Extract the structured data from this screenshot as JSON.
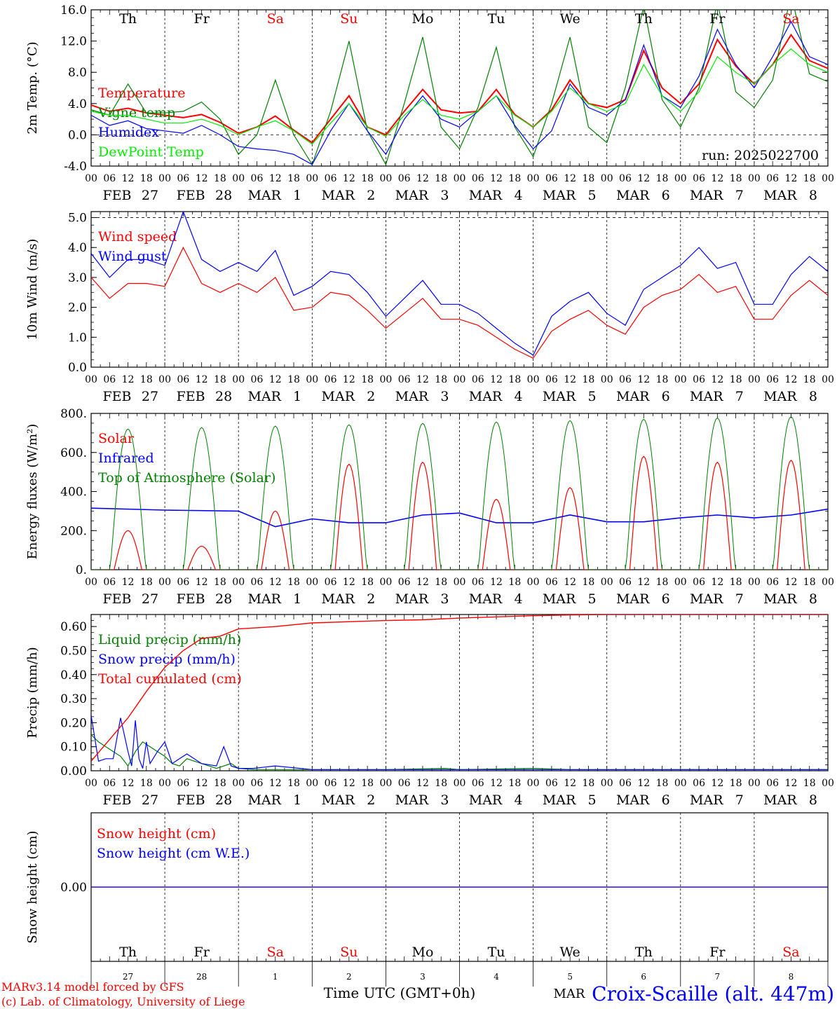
{
  "run_label": "run: 2025022700",
  "footer": {
    "model": "MARv3.14 model forced by GFS",
    "copyright": "(c) Lab. of Climatology, University of Liege",
    "xlabel": "Time UTC (GMT+0h)",
    "month": "MAR",
    "station": "Croix-Scaille (alt. 447m)"
  },
  "colors": {
    "red": "#ff0000",
    "green": "#008000",
    "blue": "#0000ff",
    "lightgreen": "#00ee00"
  },
  "weekday_labels": [
    {
      "text": "Th",
      "color": "#000000"
    },
    {
      "text": "Fr",
      "color": "#000000"
    },
    {
      "text": "Sa",
      "color": "#ff0000"
    },
    {
      "text": "Su",
      "color": "#ff0000"
    },
    {
      "text": "Mo",
      "color": "#000000"
    },
    {
      "text": "Tu",
      "color": "#000000"
    },
    {
      "text": "We",
      "color": "#000000"
    },
    {
      "text": "Th",
      "color": "#000000"
    },
    {
      "text": "Fr",
      "color": "#000000"
    },
    {
      "text": "Sa",
      "color": "#ff0000"
    }
  ],
  "day_numbers": [
    "27",
    "28",
    "1",
    "2",
    "3",
    "4",
    "5",
    "6",
    "7",
    "8"
  ],
  "hour_ticks": [
    "00",
    "06",
    "12",
    "18"
  ],
  "date_labels": [
    {
      "m": "FEB",
      "d": "27"
    },
    {
      "m": "FEB",
      "d": "28"
    },
    {
      "m": "MAR",
      "d": "1"
    },
    {
      "m": "MAR",
      "d": "2"
    },
    {
      "m": "MAR",
      "d": "3"
    },
    {
      "m": "MAR",
      "d": "4"
    },
    {
      "m": "MAR",
      "d": "5"
    },
    {
      "m": "MAR",
      "d": "6"
    },
    {
      "m": "MAR",
      "d": "7"
    },
    {
      "m": "MAR",
      "d": "8"
    }
  ],
  "chart_data": [
    {
      "type": "line",
      "ylabel": "2m Temp. (°C)",
      "ylim": [
        -4,
        16
      ],
      "yticks": [
        -4,
        0,
        4,
        8,
        12,
        16
      ],
      "ytick_labels": [
        "-4.0",
        "0.0",
        "4.0",
        "8.0",
        "12.0",
        "16.0"
      ],
      "hline": 0,
      "x_unit": "days since FEB 27 00 UTC",
      "series": [
        {
          "name": "Temperature",
          "color": "#ff0000",
          "width": 2,
          "x": [
            0,
            0.25,
            0.5,
            0.75,
            1,
            1.25,
            1.5,
            1.75,
            2,
            2.25,
            2.5,
            2.75,
            3,
            3.25,
            3.5,
            3.75,
            4,
            4.25,
            4.5,
            4.75,
            5,
            5.25,
            5.5,
            5.75,
            6,
            6.25,
            6.5,
            6.75,
            7,
            7.25,
            7.5,
            7.75,
            8,
            8.25,
            8.5,
            8.75,
            9,
            9.25,
            9.5,
            9.75,
            10
          ],
          "y": [
            3.8,
            3.0,
            3.4,
            2.8,
            2.5,
            2.2,
            2.6,
            1.6,
            0.2,
            1.0,
            2.4,
            0.6,
            -1.0,
            2.0,
            5.0,
            1.0,
            0.0,
            3.0,
            5.8,
            3.2,
            2.8,
            3.0,
            5.8,
            2.6,
            1.0,
            3.2,
            7.0,
            4.0,
            3.5,
            4.5,
            10.8,
            6.0,
            4.0,
            6.5,
            12.2,
            8.8,
            6.5,
            9.0,
            12.8,
            9.5,
            8.5
          ]
        },
        {
          "name": "Vigne temp",
          "color": "#008000",
          "width": 1.2,
          "x": [
            0,
            0.25,
            0.5,
            0.75,
            1,
            1.25,
            1.5,
            1.75,
            2,
            2.25,
            2.5,
            2.75,
            3,
            3.25,
            3.5,
            3.75,
            4,
            4.25,
            4.5,
            4.75,
            5,
            5.25,
            5.5,
            5.75,
            6,
            6.25,
            6.5,
            6.75,
            7,
            7.25,
            7.5,
            7.75,
            8,
            8.25,
            8.5,
            8.75,
            9,
            9.25,
            9.5,
            9.75,
            10
          ],
          "y": [
            3.2,
            2.5,
            6.5,
            2.8,
            2.8,
            3.0,
            4.2,
            2.0,
            -2.5,
            0.0,
            7.0,
            0.0,
            -3.8,
            3.0,
            12.0,
            0.5,
            -3.8,
            4.0,
            12.5,
            1.0,
            -1.8,
            3.5,
            11.2,
            1.0,
            -2.8,
            4.0,
            12.5,
            1.0,
            -1.0,
            6.0,
            16.5,
            4.5,
            1.0,
            6.0,
            17.0,
            5.5,
            3.5,
            7.0,
            18.0,
            7.8,
            6.8
          ]
        },
        {
          "name": "Humidex",
          "color": "#0000ff",
          "width": 1.2,
          "x": [
            0,
            0.25,
            0.5,
            0.75,
            1,
            1.25,
            1.5,
            1.75,
            2,
            2.25,
            2.5,
            2.75,
            3,
            3.25,
            3.5,
            3.75,
            4,
            4.25,
            4.5,
            4.75,
            5,
            5.25,
            5.5,
            5.75,
            6,
            6.25,
            6.5,
            6.75,
            7,
            7.25,
            7.5,
            7.75,
            8,
            8.25,
            8.5,
            8.75,
            9,
            9.25,
            9.5,
            9.75,
            10
          ],
          "y": [
            2.5,
            1.2,
            1.8,
            0.8,
            0.5,
            0.2,
            1.2,
            0.0,
            -1.5,
            -1.8,
            -2.0,
            -2.5,
            -3.8,
            0.5,
            4.0,
            0.5,
            -2.5,
            2.0,
            5.0,
            2.0,
            1.0,
            3.0,
            5.0,
            1.2,
            -1.8,
            0.5,
            6.5,
            3.5,
            2.5,
            4.5,
            11.5,
            5.0,
            3.5,
            7.5,
            13.5,
            9.0,
            6.0,
            10.0,
            14.5,
            10.0,
            9.0
          ]
        },
        {
          "name": "DewPoint Temp",
          "color": "#00ee00",
          "width": 1.2,
          "x": [
            0,
            0.25,
            0.5,
            0.75,
            1,
            1.25,
            1.5,
            1.75,
            2,
            2.25,
            2.5,
            2.75,
            3,
            3.25,
            3.5,
            3.75,
            4,
            4.25,
            4.5,
            4.75,
            5,
            5.25,
            5.5,
            5.75,
            6,
            6.25,
            6.5,
            6.75,
            7,
            7.25,
            7.5,
            7.75,
            8,
            8.25,
            8.5,
            8.75,
            9,
            9.25,
            9.5,
            9.75,
            10
          ],
          "y": [
            3.0,
            2.5,
            2.5,
            2.0,
            1.5,
            1.5,
            2.0,
            1.2,
            0.0,
            1.0,
            1.8,
            0.5,
            -1.2,
            1.5,
            4.0,
            1.0,
            -0.2,
            2.5,
            4.5,
            2.5,
            2.0,
            3.0,
            5.0,
            2.5,
            1.0,
            3.0,
            6.0,
            4.0,
            3.0,
            4.0,
            9.0,
            5.0,
            3.0,
            5.5,
            10.0,
            8.0,
            6.5,
            9.0,
            11.0,
            9.0,
            8.0
          ]
        }
      ]
    },
    {
      "type": "line",
      "ylabel": "10m Wind (m/s)",
      "ylim": [
        0,
        5.2
      ],
      "yticks": [
        0,
        1,
        2,
        3,
        4,
        5
      ],
      "ytick_labels": [
        "0.0",
        "1.0",
        "2.0",
        "3.0",
        "4.0",
        "5.0"
      ],
      "hline": 5,
      "x_unit": "days since FEB 27 00 UTC",
      "series": [
        {
          "name": "Wind speed",
          "color": "#ff0000",
          "width": 1.2,
          "x": [
            0,
            0.25,
            0.5,
            0.75,
            1,
            1.25,
            1.5,
            1.75,
            2,
            2.25,
            2.5,
            2.75,
            3,
            3.25,
            3.5,
            3.75,
            4,
            4.25,
            4.5,
            4.75,
            5,
            5.25,
            5.5,
            5.75,
            6,
            6.25,
            6.5,
            6.75,
            7,
            7.25,
            7.5,
            7.75,
            8,
            8.25,
            8.5,
            8.75,
            9,
            9.25,
            9.5,
            9.75,
            10
          ],
          "y": [
            3.0,
            2.3,
            2.8,
            2.8,
            2.7,
            4.0,
            2.8,
            2.5,
            2.8,
            2.5,
            3.0,
            1.9,
            2.0,
            2.5,
            2.4,
            1.9,
            1.3,
            1.8,
            2.3,
            1.6,
            1.6,
            1.4,
            1.0,
            0.6,
            0.3,
            1.2,
            1.6,
            1.9,
            1.4,
            1.1,
            2.0,
            2.4,
            2.6,
            3.1,
            2.5,
            2.7,
            1.6,
            1.6,
            2.4,
            2.9,
            2.4
          ]
        },
        {
          "name": "Wind gust",
          "color": "#0000ff",
          "width": 1.2,
          "x": [
            0,
            0.25,
            0.5,
            0.75,
            1,
            1.25,
            1.5,
            1.75,
            2,
            2.25,
            2.5,
            2.75,
            3,
            3.25,
            3.5,
            3.75,
            4,
            4.25,
            4.5,
            4.75,
            5,
            5.25,
            5.5,
            5.75,
            6,
            6.25,
            6.5,
            6.75,
            7,
            7.25,
            7.5,
            7.75,
            8,
            8.25,
            8.5,
            8.75,
            9,
            9.25,
            9.5,
            9.75,
            10
          ],
          "y": [
            3.8,
            3.0,
            3.6,
            3.6,
            3.4,
            5.2,
            3.6,
            3.2,
            3.5,
            3.2,
            3.9,
            2.4,
            2.7,
            3.2,
            3.1,
            2.5,
            1.7,
            2.3,
            2.9,
            2.1,
            2.1,
            1.8,
            1.3,
            0.8,
            0.4,
            1.7,
            2.2,
            2.5,
            1.8,
            1.4,
            2.6,
            3.0,
            3.4,
            4.0,
            3.3,
            3.5,
            2.1,
            2.1,
            3.1,
            3.7,
            3.2
          ]
        }
      ]
    },
    {
      "type": "line",
      "ylabel": "Energy fluxes (W/m²)",
      "ylim": [
        0,
        800
      ],
      "yticks": [
        0,
        200,
        400,
        600,
        800
      ],
      "ytick_labels": [
        "0.",
        "200.",
        "400.",
        "600.",
        "800."
      ],
      "x_unit": "days since FEB 27 00 UTC",
      "series": [
        {
          "name": "Solar",
          "color": "#ff0000",
          "width": 1.2,
          "peaks": [
            {
              "day": 0,
              "value": 200
            },
            {
              "day": 1,
              "value": 120
            },
            {
              "day": 2,
              "value": 300
            },
            {
              "day": 3,
              "value": 540
            },
            {
              "day": 4,
              "value": 550
            },
            {
              "day": 5,
              "value": 360
            },
            {
              "day": 6,
              "value": 420
            },
            {
              "day": 7,
              "value": 580
            },
            {
              "day": 8,
              "value": 550
            },
            {
              "day": 9,
              "value": 560
            }
          ]
        },
        {
          "name": "Infrared",
          "color": "#0000ff",
          "width": 1.6,
          "x": [
            0,
            1,
            2,
            2.5,
            3,
            3.5,
            4,
            4.5,
            5,
            5.5,
            6,
            6.5,
            7,
            7.5,
            8,
            8.5,
            9,
            9.5,
            10
          ],
          "y": [
            315,
            305,
            300,
            220,
            260,
            240,
            240,
            280,
            290,
            240,
            240,
            280,
            245,
            245,
            265,
            280,
            265,
            280,
            310
          ]
        },
        {
          "name": "Top of Atmosphere (Solar)",
          "color": "#008000",
          "width": 1,
          "peaks": [
            {
              "day": 0,
              "value": 720
            },
            {
              "day": 1,
              "value": 728
            },
            {
              "day": 2,
              "value": 735
            },
            {
              "day": 3,
              "value": 742
            },
            {
              "day": 4,
              "value": 749
            },
            {
              "day": 5,
              "value": 756
            },
            {
              "day": 6,
              "value": 763
            },
            {
              "day": 7,
              "value": 770
            },
            {
              "day": 8,
              "value": 777
            },
            {
              "day": 9,
              "value": 784
            }
          ]
        }
      ]
    },
    {
      "type": "line",
      "ylabel": "Precip (mm/h)",
      "ylim": [
        0,
        0.65
      ],
      "yticks": [
        0,
        0.1,
        0.2,
        0.3,
        0.4,
        0.5,
        0.6
      ],
      "ytick_labels": [
        "0.00",
        "0.10",
        "0.20",
        "0.30",
        "0.40",
        "0.50",
        "0.60"
      ],
      "x_unit": "days since FEB 27 00 UTC",
      "series": [
        {
          "name": "Liquid precip (mm/h)",
          "color": "#008000",
          "width": 1.2,
          "x": [
            0,
            0.1,
            0.2,
            0.3,
            0.4,
            0.5,
            0.6,
            0.7,
            0.8,
            0.9,
            1.0,
            1.1,
            1.2,
            1.3,
            1.5,
            1.7,
            1.9,
            2.0,
            2.2,
            3.0,
            4.0,
            4.8,
            5.0,
            6.0,
            6.5,
            7.0,
            10.0
          ],
          "y": [
            0.15,
            0.12,
            0.1,
            0.08,
            0.06,
            0.02,
            0.08,
            0.12,
            0.1,
            0.08,
            0.06,
            0.03,
            0.02,
            0.05,
            0.03,
            0.01,
            0.03,
            0.01,
            0.005,
            0.005,
            0.005,
            0.01,
            0.005,
            0.01,
            0.005,
            0.005,
            0.005
          ]
        },
        {
          "name": "Snow precip (mm/h)",
          "color": "#0000ff",
          "width": 1.2,
          "x": [
            0,
            0.1,
            0.2,
            0.3,
            0.4,
            0.5,
            0.55,
            0.6,
            0.65,
            0.7,
            0.75,
            0.8,
            0.9,
            1.0,
            1.1,
            1.2,
            1.3,
            1.5,
            1.7,
            1.8,
            1.9,
            2.0,
            2.2,
            2.5,
            3.0,
            4.0,
            5.0,
            6.0,
            7.0,
            10.0
          ],
          "y": [
            0.23,
            0.04,
            0.05,
            0.05,
            0.22,
            0.08,
            0.02,
            0.21,
            0.05,
            0.01,
            0.12,
            0.03,
            0.08,
            0.12,
            0.03,
            0.05,
            0.07,
            0.03,
            0.02,
            0.1,
            0.02,
            0.01,
            0.01,
            0.02,
            0.005,
            0.005,
            0.005,
            0.005,
            0.005,
            0.005
          ]
        },
        {
          "name": "Total cumulated (cm)",
          "color": "#ff0000",
          "width": 1.4,
          "x": [
            0,
            0.25,
            0.5,
            0.75,
            1.0,
            1.25,
            1.5,
            1.75,
            2.0,
            2.5,
            3.0,
            4.0,
            4.5,
            5.0,
            6.0,
            6.5,
            7.0,
            8.0,
            9.0,
            10.0
          ],
          "y": [
            0.04,
            0.13,
            0.22,
            0.33,
            0.43,
            0.5,
            0.55,
            0.56,
            0.59,
            0.6,
            0.615,
            0.625,
            0.628,
            0.635,
            0.645,
            0.648,
            0.65,
            0.65,
            0.65,
            0.65
          ]
        }
      ]
    },
    {
      "type": "line",
      "ylabel": "Snow height (cm)",
      "ylim": [
        -1,
        1
      ],
      "yticks": [
        0
      ],
      "ytick_labels": [
        "0.00"
      ],
      "x_unit": "days since FEB 27 00 UTC",
      "series": [
        {
          "name": "Snow height (cm)",
          "color": "#ff0000",
          "width": 1.2,
          "x": [
            0,
            10
          ],
          "y": [
            0,
            0
          ]
        },
        {
          "name": "Snow height (cm W.E.)",
          "color": "#0000ff",
          "width": 1.2,
          "x": [
            0,
            10
          ],
          "y": [
            0,
            0
          ]
        }
      ]
    }
  ]
}
